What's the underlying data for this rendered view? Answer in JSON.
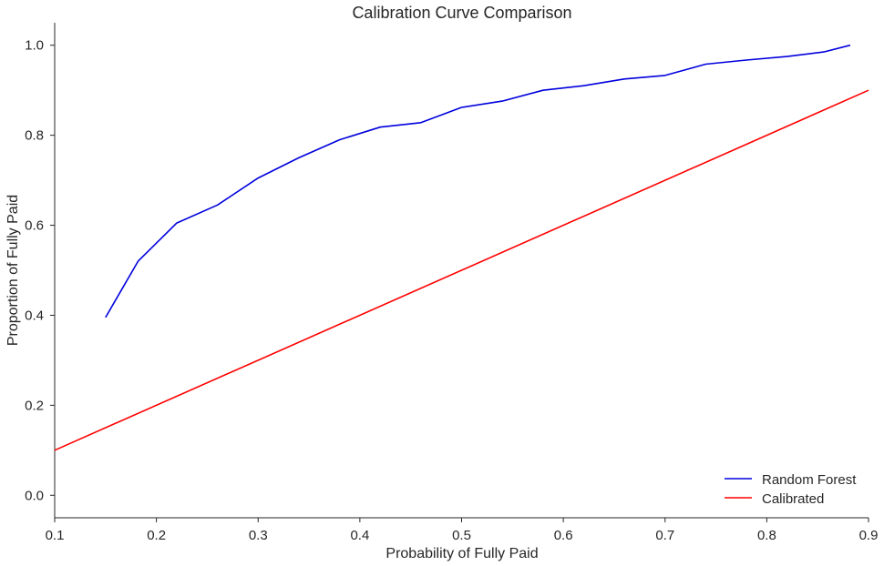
{
  "chart_data": {
    "type": "line",
    "title": "Calibration Curve Comparison",
    "xlabel": "Probability of Fully Paid",
    "ylabel": "Proportion of Fully Paid",
    "xlim": [
      0.1,
      0.9
    ],
    "ylim": [
      -0.05,
      1.05
    ],
    "x_ticks": [
      0.1,
      0.2,
      0.3,
      0.4,
      0.5,
      0.6,
      0.7,
      0.8,
      0.9
    ],
    "x_tick_labels": [
      "0.1",
      "0.2",
      "0.3",
      "0.4",
      "0.5",
      "0.6",
      "0.7",
      "0.8",
      "0.9"
    ],
    "y_ticks": [
      0.0,
      0.2,
      0.4,
      0.6,
      0.8,
      1.0
    ],
    "y_tick_labels": [
      "0.0",
      "0.2",
      "0.4",
      "0.6",
      "0.8",
      "1.0"
    ],
    "grid": false,
    "legend_position": "bottom-right",
    "series": [
      {
        "name": "Random Forest",
        "color": "#0000dd",
        "x": [
          0.15,
          0.182,
          0.22,
          0.26,
          0.3,
          0.34,
          0.38,
          0.42,
          0.46,
          0.5,
          0.54,
          0.58,
          0.62,
          0.66,
          0.7,
          0.74,
          0.78,
          0.82,
          0.856,
          0.882
        ],
        "y": [
          0.395,
          0.52,
          0.605,
          0.645,
          0.705,
          0.75,
          0.79,
          0.818,
          0.828,
          0.862,
          0.876,
          0.9,
          0.91,
          0.925,
          0.933,
          0.958,
          0.967,
          0.975,
          0.985,
          1.0
        ]
      },
      {
        "name": "Calibrated",
        "color": "#ff0000",
        "x": [
          0.1,
          0.9
        ],
        "y": [
          0.1,
          0.9
        ]
      }
    ]
  }
}
